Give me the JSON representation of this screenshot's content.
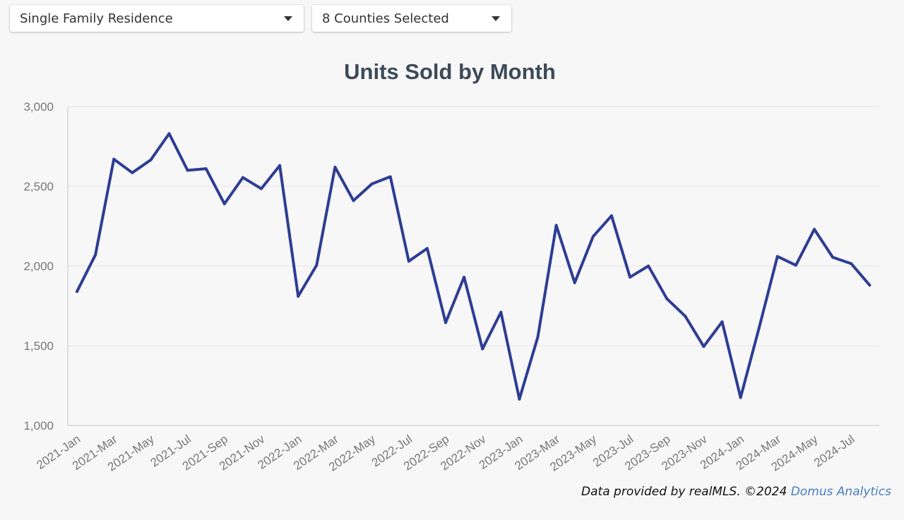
{
  "filters": {
    "property_type": "Single Family Residence",
    "counties": "8 Counties Selected"
  },
  "icons": {
    "dropdown_caret": "caret-down-icon"
  },
  "colors": {
    "line": "#2e3d94",
    "title": "#3d4a57",
    "tick_label": "#777777",
    "gridline": "#e6e6e6",
    "brand_link": "#4a7cc2"
  },
  "footer": {
    "source_text": "Data provided by realMLS.  ©2024 ",
    "brand": "Domus Analytics"
  },
  "chart_data": {
    "type": "line",
    "title": "Units Sold by Month",
    "xlabel": "",
    "ylabel": "",
    "ylim": [
      1000,
      3000
    ],
    "yticks": [
      1000,
      1500,
      2000,
      2500,
      3000
    ],
    "ytick_labels": [
      "1,000",
      "1,500",
      "2,000",
      "2,500",
      "3,000"
    ],
    "grid": true,
    "legend": "none",
    "categories": [
      "2021-Jan",
      "2021-Feb",
      "2021-Mar",
      "2021-Apr",
      "2021-May",
      "2021-Jun",
      "2021-Jul",
      "2021-Aug",
      "2021-Sep",
      "2021-Oct",
      "2021-Nov",
      "2021-Dec",
      "2022-Jan",
      "2022-Feb",
      "2022-Mar",
      "2022-Apr",
      "2022-May",
      "2022-Jun",
      "2022-Jul",
      "2022-Aug",
      "2022-Sep",
      "2022-Oct",
      "2022-Nov",
      "2022-Dec",
      "2023-Jan",
      "2023-Feb",
      "2023-Mar",
      "2023-Apr",
      "2023-May",
      "2023-Jun",
      "2023-Jul",
      "2023-Aug",
      "2023-Sep",
      "2023-Oct",
      "2023-Nov",
      "2023-Dec",
      "2024-Jan",
      "2024-Feb",
      "2024-Mar",
      "2024-Apr",
      "2024-May",
      "2024-Jun",
      "2024-Jul",
      "2024-Aug"
    ],
    "xtick_labels": [
      "2021-Jan",
      "2021-Mar",
      "2021-May",
      "2021-Jul",
      "2021-Sep",
      "2021-Nov",
      "2022-Jan",
      "2022-Mar",
      "2022-May",
      "2022-Jul",
      "2022-Sep",
      "2022-Nov",
      "2023-Jan",
      "2023-Mar",
      "2023-May",
      "2023-Jul",
      "2023-Sep",
      "2023-Nov",
      "2024-Jan",
      "2024-Mar",
      "2024-May",
      "2024-Jul"
    ],
    "series": [
      {
        "name": "",
        "values": [
          1840,
          2070,
          2670,
          2585,
          2665,
          2830,
          2600,
          2610,
          2390,
          2555,
          2485,
          2630,
          1810,
          2005,
          2620,
          2410,
          2515,
          2560,
          2030,
          2110,
          1645,
          1930,
          1480,
          1710,
          1165,
          1555,
          2255,
          1895,
          2185,
          2315,
          1930,
          2000,
          1795,
          1685,
          1495,
          1650,
          1175,
          1610,
          2060,
          2005,
          2230,
          2055,
          2015,
          1880
        ]
      }
    ]
  }
}
